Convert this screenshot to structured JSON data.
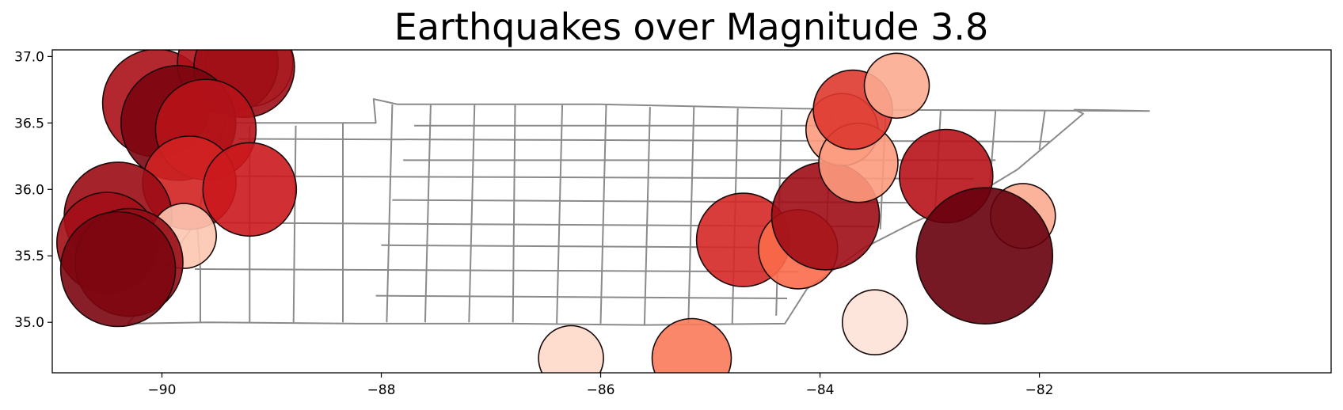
{
  "chart_data": {
    "type": "scatter",
    "title": "Earthquakes over Magnitude 3.8",
    "xlabel": "",
    "ylabel": "",
    "xlim": [
      -91.0,
      -79.34
    ],
    "ylim": [
      34.62,
      37.05
    ],
    "xticks": [
      -90,
      -88,
      -86,
      -84,
      -82
    ],
    "yticks": [
      35.0,
      35.5,
      36.0,
      36.5,
      37.0
    ],
    "xtick_labels": [
      "−90",
      "−88",
      "−86",
      "−84",
      "−82"
    ],
    "ytick_labels": [
      "35.0",
      "35.5",
      "36.0",
      "36.5",
      "37.0"
    ],
    "colormap": "Reds",
    "outline": {
      "state": [
        [
          -90.31,
          34.99
        ],
        [
          -89.55,
          35.0
        ],
        [
          -88.2,
          34.99
        ],
        [
          -86.8,
          34.99
        ],
        [
          -85.6,
          34.98
        ],
        [
          -84.32,
          34.99
        ],
        [
          -84.12,
          35.25
        ],
        [
          -83.6,
          35.56
        ],
        [
          -83.15,
          35.75
        ],
        [
          -82.6,
          35.95
        ],
        [
          -82.2,
          36.15
        ],
        [
          -81.6,
          36.57
        ],
        [
          -81.68,
          36.6
        ],
        [
          -81.0,
          36.59
        ],
        [
          -83.7,
          36.6
        ],
        [
          -86.0,
          36.64
        ],
        [
          -87.85,
          36.64
        ],
        [
          -88.07,
          36.68
        ],
        [
          -88.05,
          36.5
        ],
        [
          -89.42,
          36.5
        ],
        [
          -89.5,
          36.35
        ],
        [
          -89.6,
          36.08
        ],
        [
          -89.68,
          35.76
        ],
        [
          -89.9,
          35.52
        ],
        [
          -90.1,
          35.2
        ],
        [
          -90.31,
          34.99
        ]
      ],
      "county_lines": [
        [
          [
            -89.65,
            35.0
          ],
          [
            -89.65,
            35.4
          ],
          [
            -89.68,
            35.75
          ]
        ],
        [
          [
            -89.2,
            35.0
          ],
          [
            -89.2,
            36.48
          ]
        ],
        [
          [
            -88.8,
            35.0
          ],
          [
            -88.78,
            36.48
          ]
        ],
        [
          [
            -88.35,
            35.0
          ],
          [
            -88.35,
            36.5
          ]
        ],
        [
          [
            -87.95,
            35.0
          ],
          [
            -87.9,
            36.64
          ]
        ],
        [
          [
            -87.6,
            35.0
          ],
          [
            -87.55,
            36.64
          ]
        ],
        [
          [
            -87.2,
            35.0
          ],
          [
            -87.15,
            36.64
          ]
        ],
        [
          [
            -86.8,
            35.0
          ],
          [
            -86.78,
            36.64
          ]
        ],
        [
          [
            -86.4,
            34.99
          ],
          [
            -86.35,
            36.64
          ]
        ],
        [
          [
            -86.0,
            34.99
          ],
          [
            -85.95,
            36.64
          ]
        ],
        [
          [
            -85.6,
            34.98
          ],
          [
            -85.55,
            36.62
          ]
        ],
        [
          [
            -85.2,
            34.99
          ],
          [
            -85.15,
            36.62
          ]
        ],
        [
          [
            -84.8,
            34.99
          ],
          [
            -84.75,
            36.61
          ]
        ],
        [
          [
            -84.4,
            35.05
          ],
          [
            -84.35,
            36.6
          ]
        ],
        [
          [
            -83.95,
            35.45
          ],
          [
            -83.9,
            36.6
          ]
        ],
        [
          [
            -83.45,
            35.7
          ],
          [
            -83.4,
            36.6
          ]
        ],
        [
          [
            -82.95,
            35.85
          ],
          [
            -82.9,
            36.59
          ]
        ],
        [
          [
            -82.45,
            36.05
          ],
          [
            -82.4,
            36.59
          ]
        ],
        [
          [
            -82.0,
            36.3
          ],
          [
            -81.95,
            36.59
          ]
        ],
        [
          [
            -89.7,
            35.4
          ],
          [
            -84.2,
            35.38
          ]
        ],
        [
          [
            -89.6,
            35.75
          ],
          [
            -83.5,
            35.72
          ]
        ],
        [
          [
            -89.5,
            36.1
          ],
          [
            -82.6,
            36.08
          ]
        ],
        [
          [
            -89.3,
            36.38
          ],
          [
            -81.9,
            36.36
          ]
        ],
        [
          [
            -88.05,
            35.2
          ],
          [
            -84.3,
            35.18
          ]
        ],
        [
          [
            -88.0,
            35.58
          ],
          [
            -83.9,
            35.56
          ]
        ],
        [
          [
            -87.9,
            35.92
          ],
          [
            -83.2,
            35.9
          ]
        ],
        [
          [
            -87.8,
            36.22
          ],
          [
            -82.4,
            36.22
          ]
        ],
        [
          [
            -87.7,
            36.48
          ],
          [
            -83.6,
            36.48
          ]
        ]
      ]
    },
    "points": [
      {
        "lon": -90.05,
        "lat": 36.65,
        "mag": 5.0,
        "shade": 0.83
      },
      {
        "lon": -89.2,
        "lat": 36.95,
        "mag": 4.7,
        "shade": 0.35
      },
      {
        "lon": -89.4,
        "lat": 36.95,
        "mag": 4.9,
        "shade": 0.82
      },
      {
        "lon": -89.25,
        "lat": 36.92,
        "mag": 4.9,
        "shade": 0.86
      },
      {
        "lon": -89.85,
        "lat": 36.5,
        "mag": 5.1,
        "shade": 0.95
      },
      {
        "lon": -89.6,
        "lat": 36.45,
        "mag": 4.9,
        "shade": 0.8
      },
      {
        "lon": -89.75,
        "lat": 36.05,
        "mag": 4.8,
        "shade": 0.72
      },
      {
        "lon": -89.2,
        "lat": 36.0,
        "mag": 4.8,
        "shade": 0.75
      },
      {
        "lon": -90.4,
        "lat": 35.8,
        "mag": 5.0,
        "shade": 0.87
      },
      {
        "lon": -89.8,
        "lat": 35.65,
        "mag": 4.4,
        "shade": 0.2
      },
      {
        "lon": -90.5,
        "lat": 35.6,
        "mag": 4.9,
        "shade": 0.85
      },
      {
        "lon": -90.3,
        "lat": 35.45,
        "mag": 5.0,
        "shade": 0.88
      },
      {
        "lon": -90.4,
        "lat": 35.4,
        "mag": 5.1,
        "shade": 0.95
      },
      {
        "lon": -86.27,
        "lat": 34.73,
        "mag": 4.4,
        "shade": 0.12
      },
      {
        "lon": -85.17,
        "lat": 34.73,
        "mag": 4.6,
        "shade": 0.45
      },
      {
        "lon": -84.7,
        "lat": 35.62,
        "mag": 4.8,
        "shade": 0.7
      },
      {
        "lon": -84.2,
        "lat": 35.55,
        "mag": 4.6,
        "shade": 0.5
      },
      {
        "lon": -83.95,
        "lat": 35.8,
        "mag": 5.0,
        "shade": 0.86
      },
      {
        "lon": -83.8,
        "lat": 36.45,
        "mag": 4.5,
        "shade": 0.35
      },
      {
        "lon": -83.65,
        "lat": 36.2,
        "mag": 4.6,
        "shade": 0.35
      },
      {
        "lon": -83.7,
        "lat": 36.6,
        "mag": 4.6,
        "shade": 0.65
      },
      {
        "lon": -83.3,
        "lat": 36.78,
        "mag": 4.4,
        "shade": 0.3
      },
      {
        "lon": -83.5,
        "lat": 35.0,
        "mag": 4.4,
        "shade": 0.08
      },
      {
        "lon": -82.85,
        "lat": 36.1,
        "mag": 4.8,
        "shade": 0.8
      },
      {
        "lon": -82.15,
        "lat": 35.8,
        "mag": 4.4,
        "shade": 0.3
      },
      {
        "lon": -82.5,
        "lat": 35.5,
        "mag": 5.4,
        "shade": 1.0
      }
    ]
  }
}
